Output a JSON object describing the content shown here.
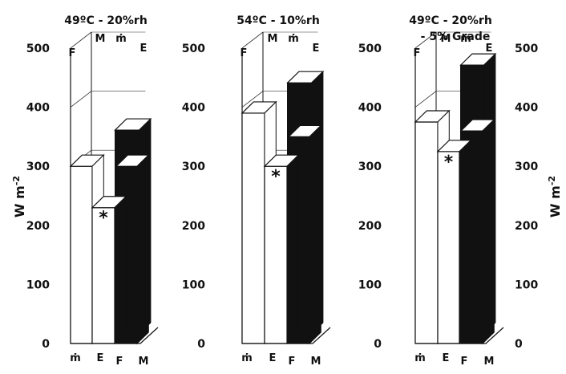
{
  "chart_data": [
    {
      "type": "bar",
      "title": "49ºC - 20%rh",
      "subtitle": "",
      "ylabel": "W",
      "ylabel_exp": "m",
      "ylabel_sup": "-2",
      "ylim": [
        0,
        500
      ],
      "yticks": [
        "0",
        "100",
        "200",
        "300",
        "400",
        "500"
      ],
      "categories": [
        "F",
        "M",
        "ṁ",
        "E"
      ],
      "values": [
        300,
        345,
        230,
        300
      ],
      "marked": "ṁ",
      "marker": "*",
      "axis_bottom_labels": [
        "ṁ",
        "E",
        "F",
        "M"
      ]
    },
    {
      "type": "bar",
      "title": "54ºC - 10%rh",
      "subtitle": "",
      "ylabel": "",
      "ylim": [
        0,
        500
      ],
      "yticks": [
        "0",
        "100",
        "200",
        "300",
        "400",
        "500"
      ],
      "categories": [
        "F",
        "M",
        "ṁ",
        "E"
      ],
      "values": [
        390,
        425,
        300,
        350
      ],
      "marked": "ṁ",
      "marker": "*",
      "axis_bottom_labels": [
        "ṁ",
        "E",
        "F",
        "M"
      ]
    },
    {
      "type": "bar",
      "title": "49ºC - 20%rh",
      "subtitle": "- 5% Grade",
      "ylabel": "W",
      "ylabel_exp": "m",
      "ylabel_sup": "-2",
      "ylim": [
        0,
        500
      ],
      "yticks": [
        "0",
        "100",
        "200",
        "300",
        "400",
        "500"
      ],
      "categories": [
        "F",
        "M",
        "ṁ",
        "E"
      ],
      "values": [
        375,
        455,
        325,
        360
      ],
      "marked": "ṁ",
      "marker": "*",
      "axis_bottom_labels": [
        "ṁ",
        "E",
        "F",
        "M"
      ]
    }
  ]
}
